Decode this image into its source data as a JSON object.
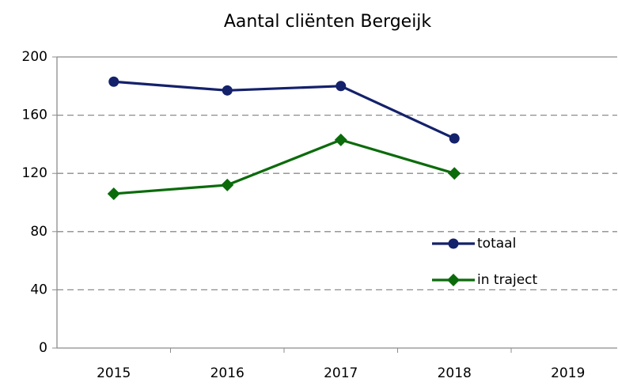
{
  "chart_data": {
    "type": "line",
    "title": "Aantal cliënten Bergeijk",
    "categories": [
      "2015",
      "2016",
      "2017",
      "2018",
      "2019"
    ],
    "series": [
      {
        "name": "totaal",
        "color": "#14216b",
        "marker": "circle",
        "values": [
          183,
          177,
          180,
          144,
          null
        ]
      },
      {
        "name": "in traject",
        "color": "#0b6b0b",
        "marker": "diamond",
        "values": [
          106,
          112,
          143,
          120,
          null
        ]
      }
    ],
    "ylim": [
      0,
      200
    ],
    "yticks": [
      0,
      40,
      80,
      120,
      160,
      200
    ],
    "grid": true,
    "legend": "right"
  }
}
